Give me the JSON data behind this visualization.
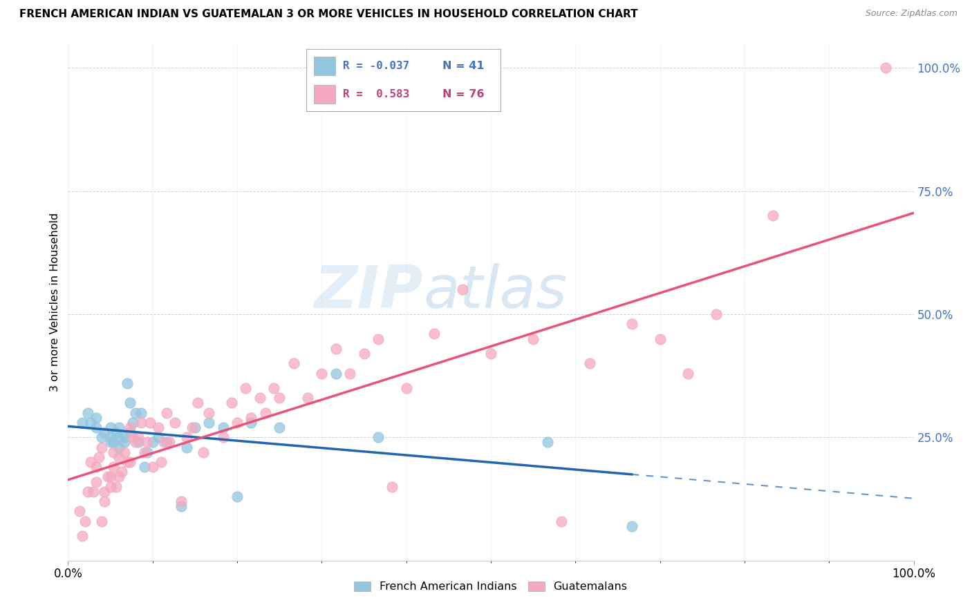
{
  "title": "FRENCH AMERICAN INDIAN VS GUATEMALAN 3 OR MORE VEHICLES IN HOUSEHOLD CORRELATION CHART",
  "source": "Source: ZipAtlas.com",
  "ylabel": "3 or more Vehicles in Household",
  "blue_color": "#92c5de",
  "pink_color": "#f4a9c0",
  "blue_line_color": "#2166ac",
  "pink_line_color": "#e8537a",
  "watermark_zip": "ZIP",
  "watermark_atlas": "atlas",
  "blue_label": "French American Indians",
  "pink_label": "Guatemalans",
  "blue_points_x": [
    0.005,
    0.007,
    0.008,
    0.01,
    0.01,
    0.012,
    0.013,
    0.015,
    0.015,
    0.015,
    0.016,
    0.017,
    0.018,
    0.018,
    0.018,
    0.02,
    0.02,
    0.021,
    0.022,
    0.022,
    0.023,
    0.024,
    0.025,
    0.026,
    0.027,
    0.028,
    0.03,
    0.032,
    0.035,
    0.04,
    0.042,
    0.045,
    0.05,
    0.055,
    0.06,
    0.065,
    0.075,
    0.095,
    0.11,
    0.17,
    0.2
  ],
  "blue_points_y": [
    0.28,
    0.3,
    0.28,
    0.27,
    0.29,
    0.25,
    0.26,
    0.24,
    0.25,
    0.27,
    0.24,
    0.26,
    0.23,
    0.25,
    0.27,
    0.24,
    0.25,
    0.36,
    0.26,
    0.32,
    0.28,
    0.3,
    0.24,
    0.3,
    0.19,
    0.22,
    0.24,
    0.25,
    0.24,
    0.11,
    0.23,
    0.27,
    0.28,
    0.27,
    0.13,
    0.28,
    0.27,
    0.38,
    0.25,
    0.24,
    0.07
  ],
  "pink_points_x": [
    0.004,
    0.005,
    0.006,
    0.007,
    0.008,
    0.009,
    0.01,
    0.01,
    0.011,
    0.012,
    0.012,
    0.013,
    0.013,
    0.014,
    0.015,
    0.015,
    0.016,
    0.016,
    0.017,
    0.018,
    0.018,
    0.019,
    0.02,
    0.021,
    0.022,
    0.022,
    0.023,
    0.024,
    0.025,
    0.026,
    0.027,
    0.028,
    0.029,
    0.03,
    0.032,
    0.033,
    0.034,
    0.035,
    0.036,
    0.038,
    0.04,
    0.042,
    0.044,
    0.046,
    0.048,
    0.05,
    0.055,
    0.058,
    0.06,
    0.063,
    0.065,
    0.068,
    0.07,
    0.073,
    0.075,
    0.08,
    0.085,
    0.09,
    0.095,
    0.1,
    0.105,
    0.11,
    0.115,
    0.12,
    0.13,
    0.14,
    0.15,
    0.165,
    0.175,
    0.185,
    0.2,
    0.21,
    0.22,
    0.23,
    0.25,
    0.29
  ],
  "pink_points_y": [
    0.1,
    0.05,
    0.08,
    0.14,
    0.2,
    0.14,
    0.16,
    0.19,
    0.21,
    0.23,
    0.08,
    0.12,
    0.14,
    0.17,
    0.15,
    0.17,
    0.19,
    0.22,
    0.15,
    0.17,
    0.21,
    0.18,
    0.22,
    0.2,
    0.27,
    0.2,
    0.25,
    0.24,
    0.25,
    0.28,
    0.22,
    0.24,
    0.28,
    0.19,
    0.27,
    0.2,
    0.24,
    0.3,
    0.24,
    0.28,
    0.12,
    0.25,
    0.27,
    0.32,
    0.22,
    0.3,
    0.25,
    0.32,
    0.28,
    0.35,
    0.29,
    0.33,
    0.3,
    0.35,
    0.33,
    0.4,
    0.33,
    0.38,
    0.43,
    0.38,
    0.42,
    0.45,
    0.15,
    0.35,
    0.46,
    0.55,
    0.42,
    0.45,
    0.08,
    0.4,
    0.48,
    0.45,
    0.38,
    0.5,
    0.7,
    1.0
  ],
  "xlim": [
    0.0,
    0.3
  ],
  "ylim": [
    0.0,
    1.05
  ],
  "yticks": [
    0.0,
    0.25,
    0.5,
    0.75,
    1.0
  ],
  "ytick_labels": [
    "",
    "25.0%",
    "50.0%",
    "75.0%",
    "100.0%"
  ],
  "xtick_left_label": "0.0%",
  "xtick_right_label": "100.0%"
}
